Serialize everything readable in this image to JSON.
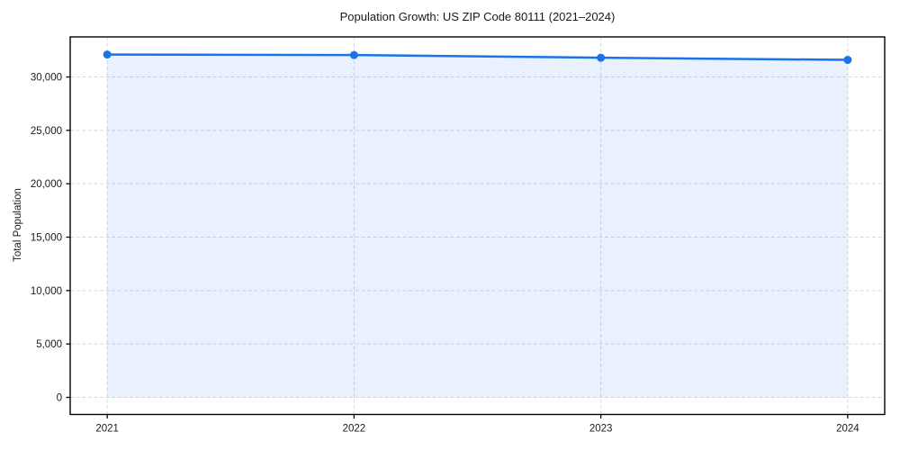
{
  "chart_data": {
    "type": "line",
    "title": "Population Growth: US ZIP Code 80111 (2021–2024)",
    "xlabel": "",
    "ylabel": "Total Population",
    "series_name": "Total Population",
    "x": [
      2021,
      2022,
      2023,
      2024
    ],
    "values": [
      32100,
      32050,
      31800,
      31600
    ],
    "xticks": [
      2021,
      2022,
      2023,
      2024
    ],
    "xtick_labels": [
      "2021",
      "2022",
      "2023",
      "2024"
    ],
    "yticks": [
      0,
      5000,
      10000,
      15000,
      20000,
      25000,
      30000
    ],
    "ytick_labels": [
      "0",
      "5,000",
      "10,000",
      "15,000",
      "20,000",
      "25,000",
      "30,000"
    ],
    "xlim": [
      2020.85,
      2024.15
    ],
    "ylim": [
      -1600,
      33750
    ],
    "grid": true,
    "grid_style": "dashed",
    "legend": false,
    "marker": "circle",
    "area_fill": true,
    "fill_baseline": 0,
    "colors": {
      "line": "#1a73e8",
      "marker": "#1a73e8",
      "fill": "#1a73e8",
      "fill_opacity": 0.1,
      "grid": "#d9d9d9",
      "axis": "#000000",
      "text": "#1a1a1a"
    }
  }
}
